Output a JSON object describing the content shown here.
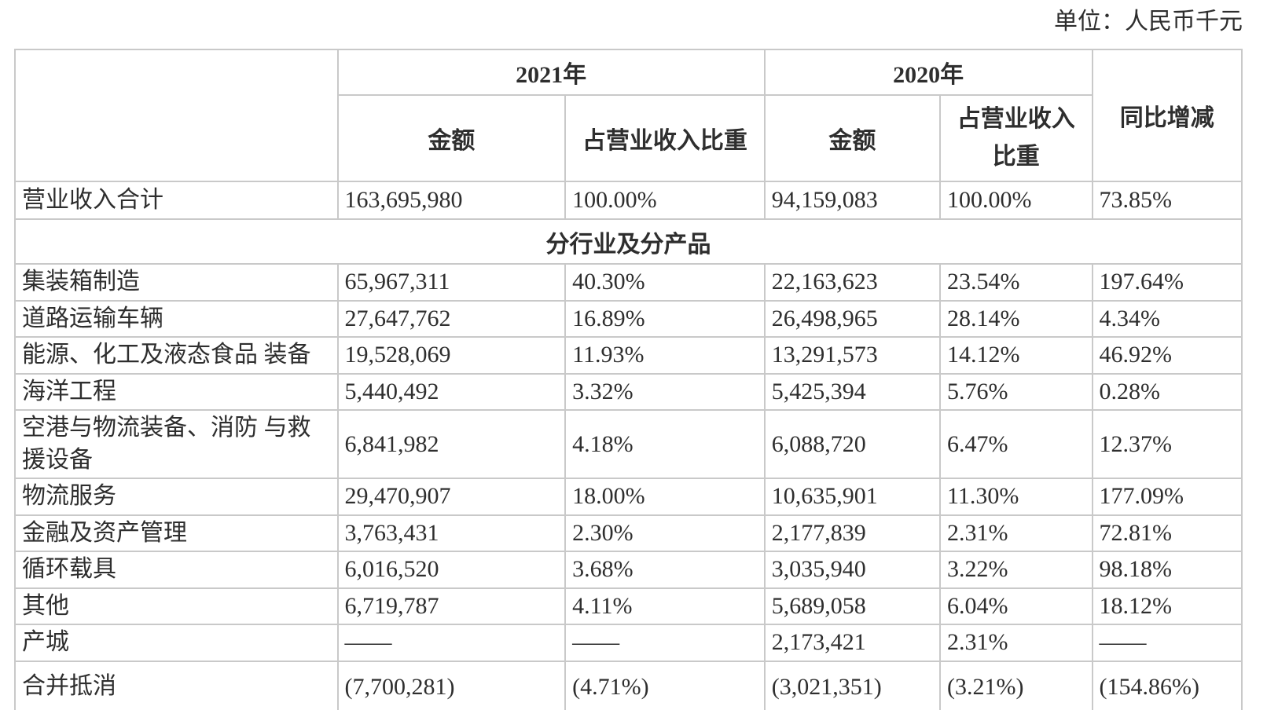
{
  "page": {
    "unit_label": "单位：人民币千元"
  },
  "table": {
    "header": {
      "year_2021": "2021年",
      "year_2020": "2020年",
      "yoy": "同比增减",
      "amount_2021": "金额",
      "ratio_2021": "占营业收入比重",
      "amount_2020": "金额",
      "ratio_2020": "占营业收入\n比重"
    },
    "rows": [
      {
        "type": "data",
        "label": "营业收入合计",
        "values": [
          "163,695,980",
          "100.00%",
          "94,159,083",
          "100.00%",
          "73.85%"
        ]
      },
      {
        "type": "section",
        "label": "分行业及分产品"
      },
      {
        "type": "data",
        "label": "集装箱制造",
        "values": [
          "65,967,311",
          "40.30%",
          "22,163,623",
          "23.54%",
          "197.64%"
        ]
      },
      {
        "type": "data",
        "label": "道路运输车辆",
        "values": [
          "27,647,762",
          "16.89%",
          "26,498,965",
          "28.14%",
          "4.34%"
        ]
      },
      {
        "type": "data",
        "label": "能源、化工及液态食品 装备",
        "values": [
          "19,528,069",
          "11.93%",
          "13,291,573",
          "14.12%",
          "46.92%"
        ]
      },
      {
        "type": "data",
        "label": "海洋工程",
        "values": [
          "5,440,492",
          "3.32%",
          "5,425,394",
          "5.76%",
          "0.28%"
        ]
      },
      {
        "type": "data",
        "label": "空港与物流装备、消防 与救援设备",
        "values": [
          "6,841,982",
          "4.18%",
          "6,088,720",
          "6.47%",
          "12.37%"
        ]
      },
      {
        "type": "data",
        "label": "物流服务",
        "values": [
          "29,470,907",
          "18.00%",
          "10,635,901",
          "11.30%",
          "177.09%"
        ]
      },
      {
        "type": "data",
        "label": "金融及资产管理",
        "values": [
          "3,763,431",
          "2.30%",
          "2,177,839",
          "2.31%",
          "72.81%"
        ]
      },
      {
        "type": "data",
        "label": "循环载具",
        "values": [
          "6,016,520",
          "3.68%",
          "3,035,940",
          "3.22%",
          "98.18%"
        ]
      },
      {
        "type": "data",
        "label": "其他",
        "values": [
          "6,719,787",
          "4.11%",
          "5,689,058",
          "6.04%",
          "18.12%"
        ]
      },
      {
        "type": "data",
        "label": "产城",
        "values": [
          "——",
          "——",
          "2,173,421",
          "2.31%",
          "——"
        ]
      },
      {
        "type": "data",
        "label": "合并抵消",
        "values": [
          "(7,700,281)",
          "(4.71%)",
          "(3,021,351)",
          "(3.21%)",
          "(154.86%)"
        ]
      },
      {
        "type": "partial",
        "label": "",
        "values": [
          "",
          "",
          "",
          "",
          ""
        ]
      }
    ]
  }
}
